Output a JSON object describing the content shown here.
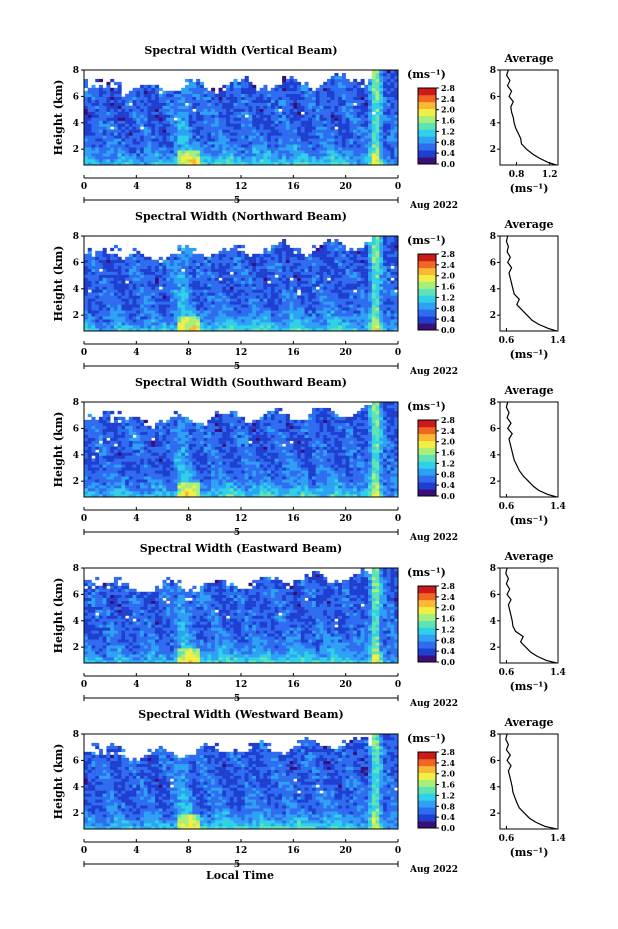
{
  "chart_data": {
    "type": "heatmap",
    "x_axis_label": "Local Time",
    "date_label": "Aug 2022",
    "day_marker": "5",
    "x_ticks": [
      "0",
      "4",
      "8",
      "12",
      "16",
      "20",
      "0"
    ],
    "xlim": [
      0,
      24
    ],
    "y_ticks": [
      "2",
      "4",
      "6",
      "8"
    ],
    "ylim": [
      0.8,
      8
    ],
    "colorbar_unit": "(ms⁻¹)",
    "colorbar_ticks": [
      "0.0",
      "0.4",
      "0.8",
      "1.2",
      "1.6",
      "2.0",
      "2.4",
      "2.8"
    ],
    "colorbar_range": [
      0.0,
      2.8
    ],
    "colors": {
      "scale": [
        "#3b0f7a",
        "#1f3fd0",
        "#2f6cf0",
        "#2ea1f5",
        "#30d0e8",
        "#5fe3b5",
        "#a8ef7a",
        "#f1ef45",
        "#fbb833",
        "#f06622",
        "#cc1a1a"
      ],
      "axis": "#000000"
    },
    "panels": [
      {
        "title": "Spectral Width (Vertical Beam)",
        "ylabel": "Height (km)",
        "profile_title": "Average",
        "profile_xlabel": "(ms⁻¹)",
        "profile_ticks": [
          "0.8",
          "1.2"
        ],
        "profile_xlim": [
          0.6,
          1.3
        ],
        "profile_heights": [
          0.8,
          1.0,
          1.3,
          1.6,
          2.0,
          2.4,
          2.8,
          3.2,
          3.6,
          4.0,
          4.4,
          4.8,
          5.2,
          5.6,
          6.0,
          6.4,
          6.8,
          7.2,
          7.6,
          8.0
        ],
        "profile_values": [
          1.28,
          1.18,
          1.08,
          1.0,
          0.92,
          0.86,
          0.85,
          0.82,
          0.79,
          0.77,
          0.76,
          0.74,
          0.73,
          0.76,
          0.71,
          0.74,
          0.69,
          0.72,
          0.68,
          0.7
        ]
      },
      {
        "title": "Spectral Width (Northward Beam)",
        "ylabel": "Height (km)",
        "profile_title": "Average",
        "profile_xlabel": "(ms⁻¹)",
        "profile_ticks": [
          "0.6",
          "1.4"
        ],
        "profile_xlim": [
          0.5,
          1.4
        ],
        "profile_heights": [
          0.8,
          1.0,
          1.3,
          1.6,
          2.0,
          2.4,
          2.8,
          3.2,
          3.6,
          4.0,
          4.4,
          4.8,
          5.2,
          5.6,
          6.0,
          6.4,
          6.8,
          7.2,
          7.6,
          8.0
        ],
        "profile_values": [
          1.38,
          1.25,
          1.1,
          1.0,
          0.92,
          0.84,
          0.76,
          0.8,
          0.72,
          0.7,
          0.68,
          0.66,
          0.64,
          0.68,
          0.62,
          0.66,
          0.61,
          0.63,
          0.6,
          0.62
        ]
      },
      {
        "title": "Spectral Width (Southward Beam)",
        "ylabel": "Height (km)",
        "profile_title": "Average",
        "profile_xlabel": "(ms⁻¹)",
        "profile_ticks": [
          "0.6",
          "1.4"
        ],
        "profile_xlim": [
          0.5,
          1.4
        ],
        "profile_heights": [
          0.8,
          1.0,
          1.3,
          1.6,
          2.0,
          2.4,
          2.8,
          3.2,
          3.6,
          4.0,
          4.4,
          4.8,
          5.2,
          5.6,
          6.0,
          6.4,
          6.8,
          7.2,
          7.6,
          8.0
        ],
        "profile_values": [
          1.38,
          1.24,
          1.1,
          1.02,
          0.94,
          0.86,
          0.8,
          0.76,
          0.72,
          0.7,
          0.68,
          0.66,
          0.64,
          0.69,
          0.62,
          0.67,
          0.61,
          0.64,
          0.6,
          0.62
        ]
      },
      {
        "title": "Spectral Width (Eastward Beam)",
        "ylabel": "Height (km)",
        "profile_title": "Average",
        "profile_xlabel": "(ms⁻¹)",
        "profile_ticks": [
          "0.6",
          "1.4"
        ],
        "profile_xlim": [
          0.5,
          1.4
        ],
        "profile_heights": [
          0.8,
          1.0,
          1.3,
          1.6,
          2.0,
          2.4,
          2.8,
          3.2,
          3.6,
          4.0,
          4.4,
          4.8,
          5.2,
          5.6,
          6.0,
          6.4,
          6.8,
          7.2,
          7.6,
          8.0
        ],
        "profile_values": [
          1.38,
          1.22,
          1.08,
          0.98,
          0.9,
          0.82,
          0.86,
          0.74,
          0.7,
          0.69,
          0.67,
          0.65,
          0.63,
          0.67,
          0.61,
          0.65,
          0.6,
          0.63,
          0.59,
          0.61
        ]
      },
      {
        "title": "Spectral Width (Westward Beam)",
        "ylabel": "Height (km)",
        "profile_title": "Average",
        "profile_xlabel": "(ms⁻¹)",
        "profile_ticks": [
          "0.6",
          "1.4"
        ],
        "profile_xlim": [
          0.5,
          1.4
        ],
        "profile_heights": [
          0.8,
          1.0,
          1.3,
          1.6,
          2.0,
          2.4,
          2.8,
          3.2,
          3.6,
          4.0,
          4.4,
          4.8,
          5.2,
          5.6,
          6.0,
          6.4,
          6.8,
          7.2,
          7.6,
          8.0
        ],
        "profile_values": [
          1.38,
          1.2,
          1.06,
          0.96,
          0.88,
          0.8,
          0.76,
          0.73,
          0.7,
          0.69,
          0.67,
          0.65,
          0.63,
          0.67,
          0.61,
          0.66,
          0.6,
          0.63,
          0.59,
          0.61
        ]
      }
    ]
  }
}
